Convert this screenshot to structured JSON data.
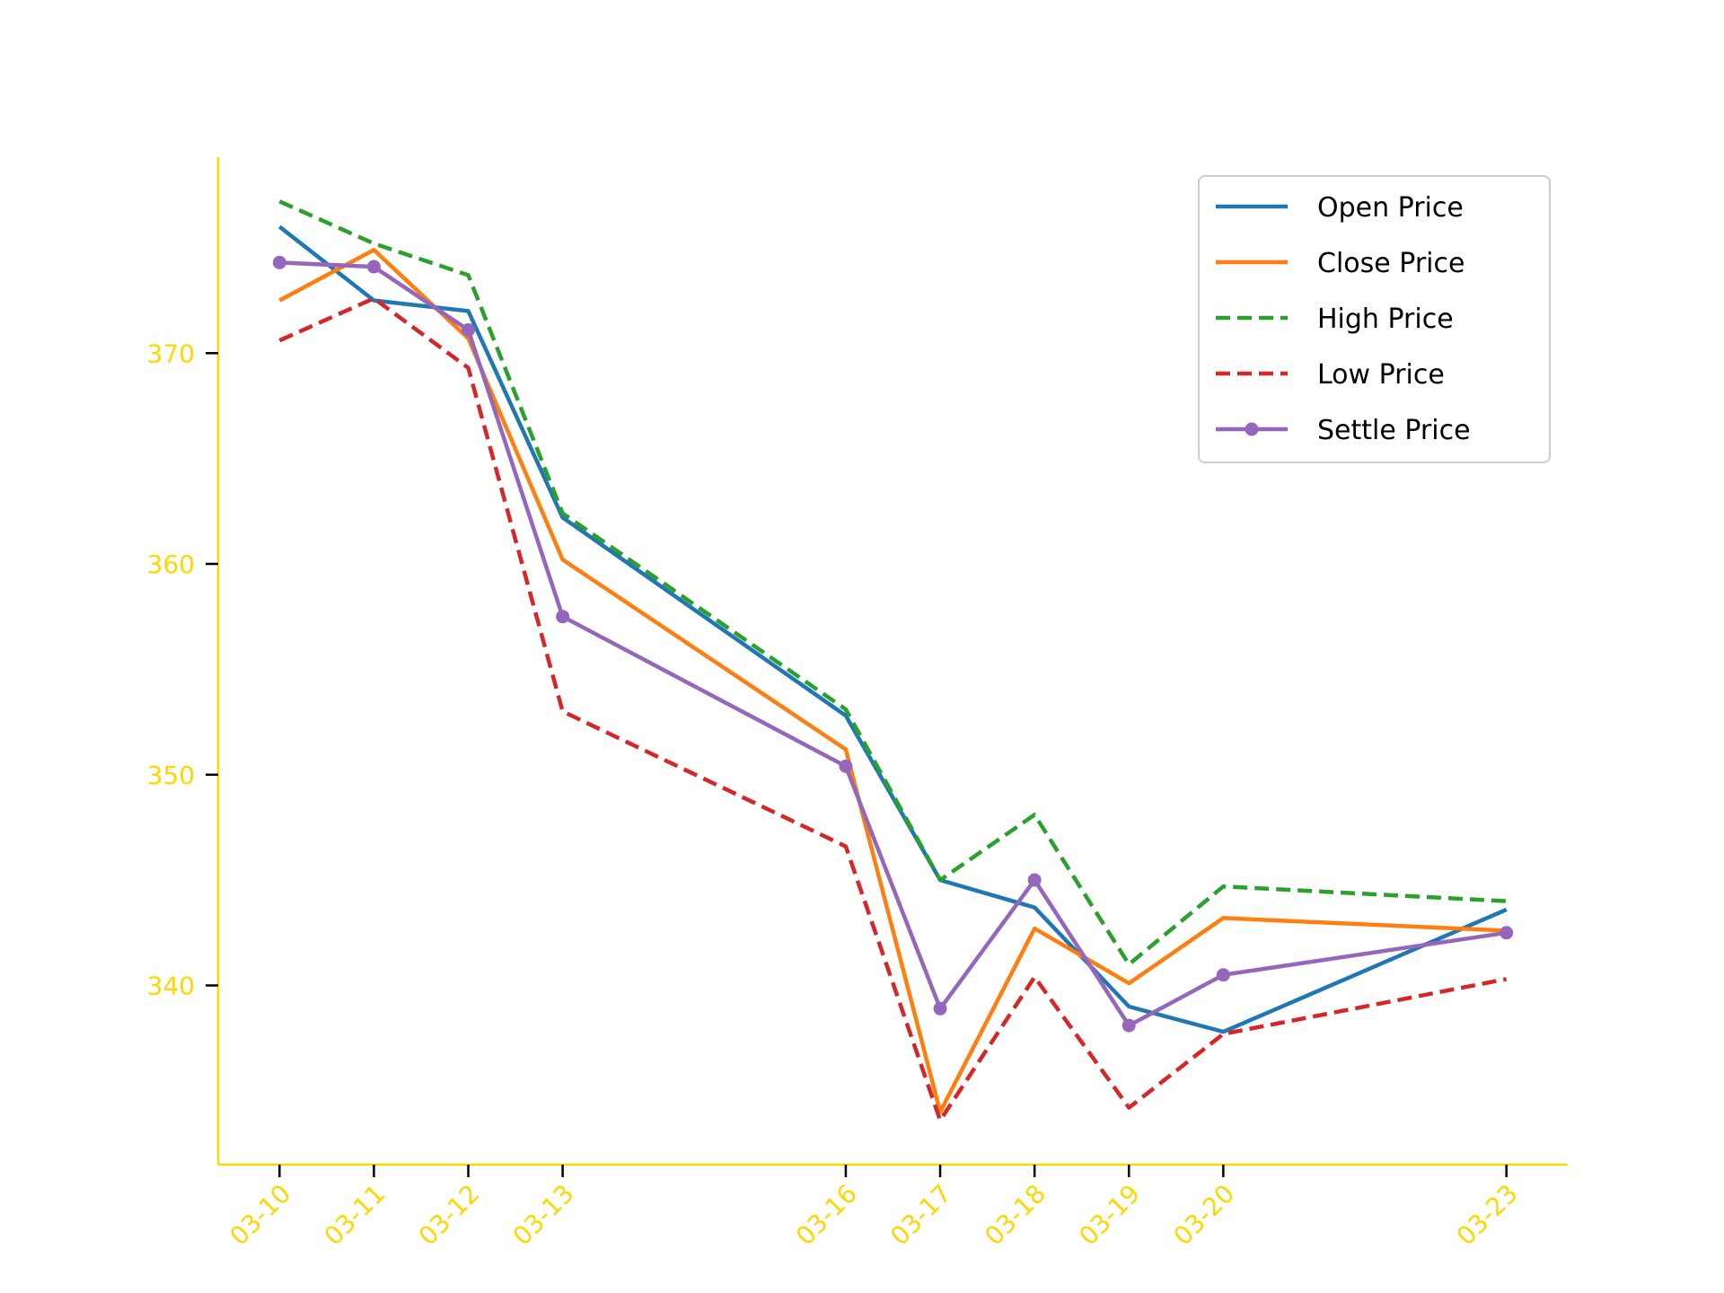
{
  "chart_data": {
    "type": "line",
    "x": [
      "03-10",
      "03-11",
      "03-12",
      "03-13",
      "03-16",
      "03-17",
      "03-18",
      "03-19",
      "03-20",
      "03-23"
    ],
    "x_day_numbers": [
      10,
      11,
      12,
      13,
      16,
      17,
      18,
      19,
      20,
      23
    ],
    "series": [
      {
        "name": "Open Price",
        "color": "#1f77b4",
        "dash": "solid",
        "marker": false,
        "values": [
          376.0,
          372.5,
          372.0,
          362.2,
          352.8,
          345.0,
          343.7,
          339.0,
          337.8,
          343.6
        ]
      },
      {
        "name": "Close Price",
        "color": "#ff7f0e",
        "dash": "solid",
        "marker": false,
        "values": [
          372.5,
          374.9,
          370.7,
          360.2,
          351.2,
          334.0,
          342.7,
          340.1,
          343.2,
          342.6
        ]
      },
      {
        "name": "High Price",
        "color": "#2ca02c",
        "dash": "dashed",
        "marker": false,
        "values": [
          377.2,
          375.2,
          373.7,
          362.4,
          353.1,
          345.0,
          348.1,
          341.0,
          344.7,
          344.0
        ]
      },
      {
        "name": "Low Price",
        "color": "#d62728",
        "dash": "dashed",
        "marker": false,
        "values": [
          370.6,
          372.6,
          369.3,
          353.0,
          346.6,
          333.6,
          340.4,
          334.2,
          337.7,
          340.3
        ]
      },
      {
        "name": "Settle Price",
        "color": "#9467bd",
        "dash": "solid",
        "marker": true,
        "values": [
          374.3,
          374.1,
          371.1,
          357.5,
          350.4,
          338.9,
          345.0,
          338.1,
          340.5,
          342.5
        ]
      }
    ],
    "yticks": [
      340,
      350,
      360,
      370
    ],
    "ylim": [
      331.5,
      379.3
    ],
    "xlim": [
      9.35,
      23.65
    ],
    "grid": false,
    "legend_position": "top-right",
    "axis_color": "#FFD700",
    "title": "",
    "xlabel": "",
    "ylabel": ""
  }
}
